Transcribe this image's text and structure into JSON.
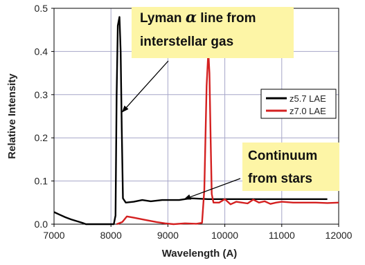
{
  "chart_data": {
    "type": "line",
    "xlabel": "Wavelength (A)",
    "ylabel": "Relative Intensity",
    "xlim": [
      7000,
      12000
    ],
    "ylim": [
      0,
      0.5
    ],
    "xticks": [
      7000,
      8000,
      9000,
      10000,
      11000,
      12000
    ],
    "yticks": [
      0.0,
      0.1,
      0.2,
      0.3,
      0.4,
      0.5
    ],
    "xtick_labels": [
      "7000",
      "8000",
      "9000",
      "10000",
      "11000",
      "12000"
    ],
    "ytick_labels": [
      "0.0",
      "0.1",
      "0.2",
      "0.3",
      "0.4",
      "0.5"
    ],
    "grid": true,
    "legend_position": "right",
    "series": [
      {
        "name": "z5.7 LAE",
        "color": "#000000",
        "points": [
          [
            7000,
            0.028
          ],
          [
            7100,
            0.022
          ],
          [
            7200,
            0.016
          ],
          [
            7300,
            0.011
          ],
          [
            7400,
            0.007
          ],
          [
            7500,
            0.003
          ],
          [
            7560,
            0.0
          ],
          [
            8050,
            0.0
          ],
          [
            8080,
            0.02
          ],
          [
            8100,
            0.3
          ],
          [
            8120,
            0.46
          ],
          [
            8150,
            0.48
          ],
          [
            8170,
            0.4
          ],
          [
            8190,
            0.22
          ],
          [
            8210,
            0.06
          ],
          [
            8260,
            0.05
          ],
          [
            8400,
            0.052
          ],
          [
            8550,
            0.056
          ],
          [
            8700,
            0.053
          ],
          [
            8900,
            0.056
          ],
          [
            9200,
            0.056
          ],
          [
            9400,
            0.06
          ],
          [
            9700,
            0.058
          ],
          [
            10000,
            0.058
          ],
          [
            10500,
            0.058
          ],
          [
            11000,
            0.058
          ],
          [
            11500,
            0.058
          ],
          [
            11800,
            0.058
          ]
        ]
      },
      {
        "name": "z7.0 LAE",
        "color": "#d42020",
        "points": [
          [
            8100,
            0.0
          ],
          [
            8200,
            0.005
          ],
          [
            8280,
            0.018
          ],
          [
            8400,
            0.015
          ],
          [
            8600,
            0.01
          ],
          [
            8800,
            0.005
          ],
          [
            8950,
            0.002
          ],
          [
            9100,
            0.0
          ],
          [
            9300,
            0.002
          ],
          [
            9500,
            0.001
          ],
          [
            9600,
            0.003
          ],
          [
            9640,
            0.08
          ],
          [
            9680,
            0.32
          ],
          [
            9710,
            0.4
          ],
          [
            9730,
            0.35
          ],
          [
            9750,
            0.2
          ],
          [
            9770,
            0.07
          ],
          [
            9800,
            0.05
          ],
          [
            9900,
            0.05
          ],
          [
            10000,
            0.058
          ],
          [
            10100,
            0.046
          ],
          [
            10200,
            0.052
          ],
          [
            10300,
            0.05
          ],
          [
            10400,
            0.048
          ],
          [
            10500,
            0.057
          ],
          [
            10600,
            0.05
          ],
          [
            10700,
            0.053
          ],
          [
            10800,
            0.047
          ],
          [
            10900,
            0.05
          ],
          [
            11000,
            0.052
          ],
          [
            11200,
            0.05
          ],
          [
            11400,
            0.05
          ],
          [
            11600,
            0.05
          ],
          [
            11800,
            0.049
          ],
          [
            12000,
            0.05
          ]
        ]
      }
    ],
    "annotations": [
      {
        "id": "lyman",
        "lines": [
          [
            "Lyman ",
            "α",
            " line from"
          ],
          [
            "interstellar gas"
          ]
        ],
        "box_color": "#fdf5a6",
        "arrow_target": [
          8200,
          0.26
        ]
      },
      {
        "id": "continuum",
        "lines": [
          [
            "Continuum"
          ],
          [
            "from stars"
          ]
        ],
        "box_color": "#fdf5a6",
        "arrow_target": [
          9290,
          0.058
        ]
      }
    ]
  }
}
